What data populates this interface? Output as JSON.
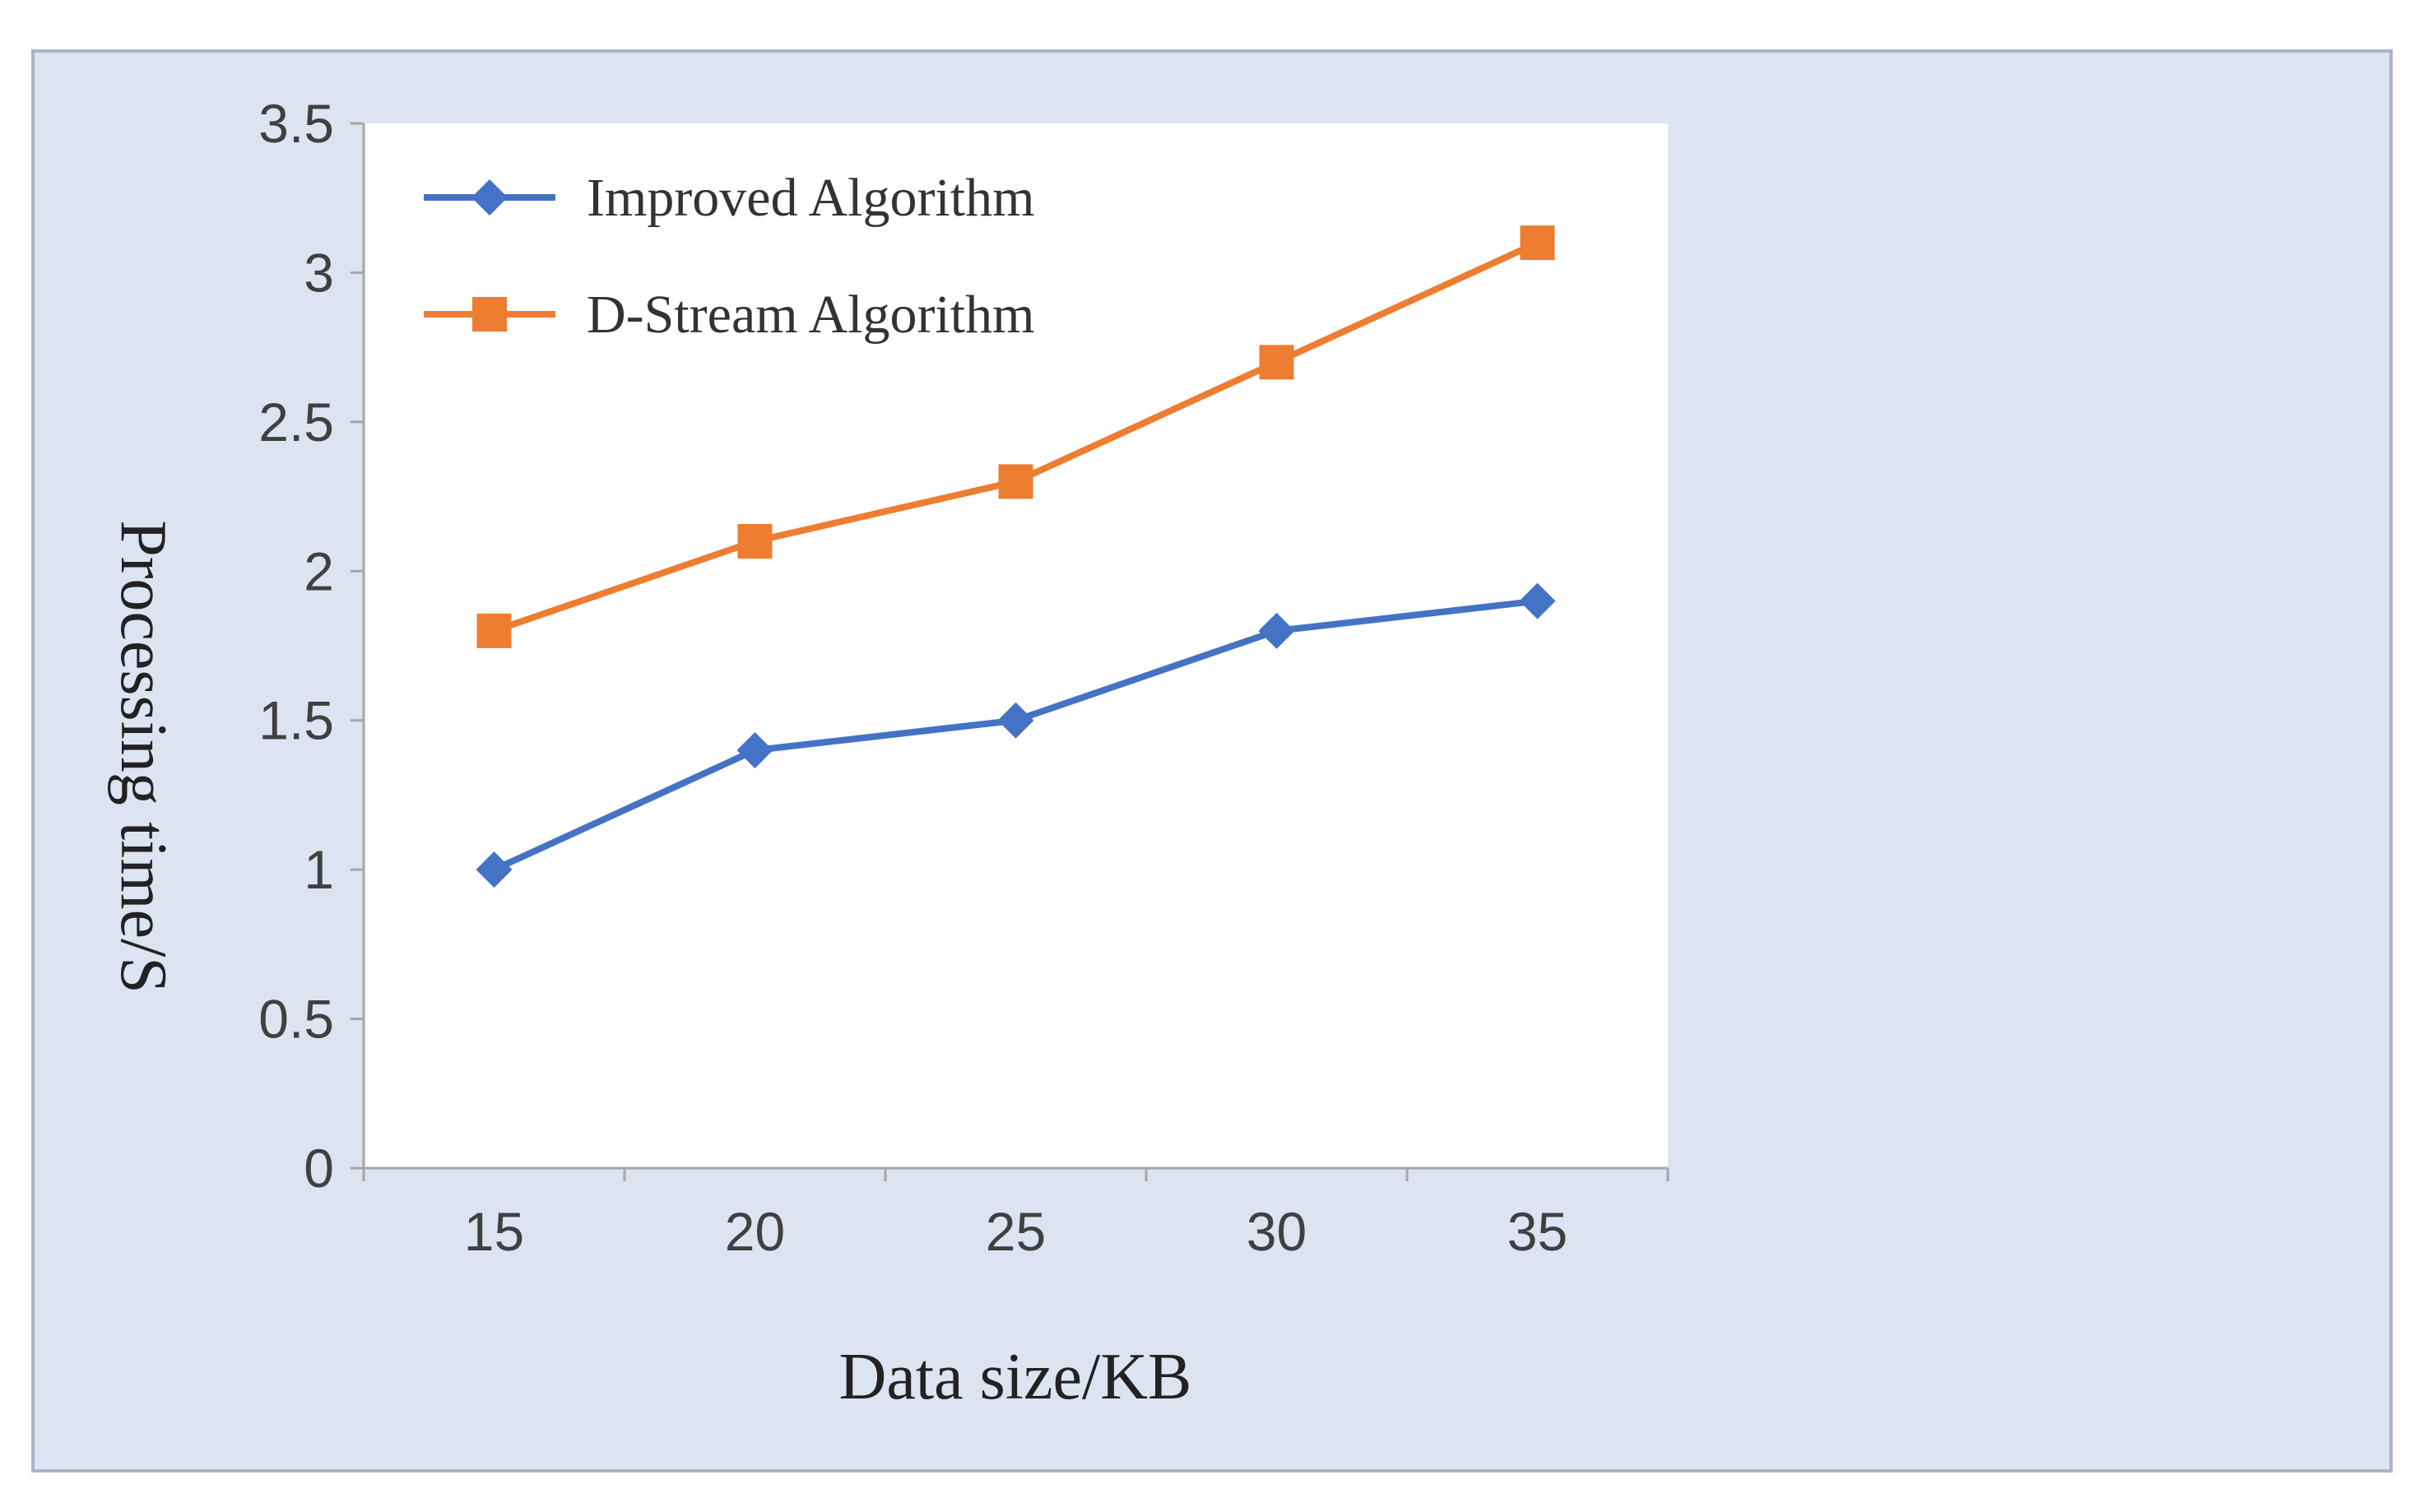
{
  "chart_data": {
    "type": "line",
    "title": "",
    "xlabel": "Data size/KB",
    "ylabel": "Processing time/S",
    "categories": [
      "15",
      "20",
      "25",
      "30",
      "35"
    ],
    "x": [
      15,
      20,
      25,
      30,
      35
    ],
    "ylim": [
      0,
      3.5
    ],
    "yticks": [
      "0",
      "0.5",
      "1",
      "1.5",
      "2",
      "2.5",
      "3",
      "3.5"
    ],
    "ytick_values": [
      0,
      0.5,
      1,
      1.5,
      2,
      2.5,
      3,
      3.5
    ],
    "grid": false,
    "legend_position": "top-left",
    "series": [
      {
        "name": "Improved Algorithm",
        "values": [
          1.0,
          1.4,
          1.5,
          1.8,
          1.9
        ],
        "color": "#4472c4",
        "marker": "diamond"
      },
      {
        "name": "D-Stream Algorithm",
        "values": [
          1.8,
          2.1,
          2.3,
          2.7,
          3.1
        ],
        "color": "#ed7d31",
        "marker": "square"
      }
    ],
    "colors": {
      "frame_background": "#dce3f1",
      "frame_border": "#a9b4cc",
      "plot_background": "#ffffff",
      "axis": "#a6a6a6"
    }
  }
}
